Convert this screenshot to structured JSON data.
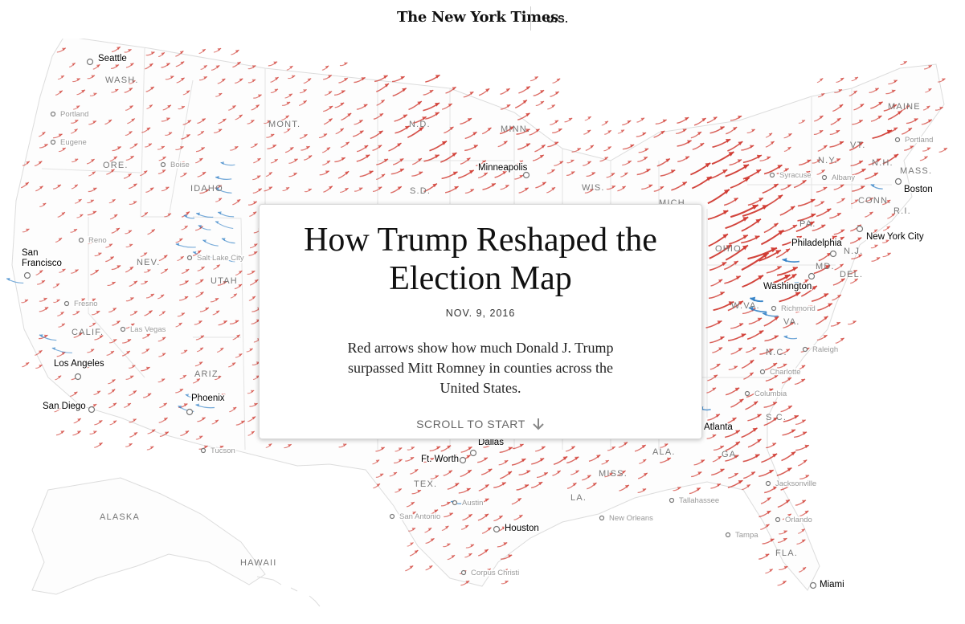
{
  "masthead": {
    "brand": "The New York Times",
    "section": "U.S."
  },
  "card": {
    "headline": "How Trump Reshaped the Election Map",
    "date": "NOV. 9, 2016",
    "dek": "Red arrows show how much Donald J. Trump surpassed Mitt Romney in counties across the United States.",
    "scroll_label": "SCROLL TO START",
    "scroll_icon": "arrow-down-icon"
  },
  "map": {
    "colors": {
      "trump_gain": "#d03a31",
      "dem_shift": "#2f7fc6",
      "state_border": "#d4d4d4",
      "label_gray": "#777777"
    },
    "state_labels": [
      "WASH.",
      "ORE.",
      "IDAHO",
      "MONT.",
      "N.D.",
      "MINN.",
      "S.D.",
      "WIS.",
      "MICH.",
      "NEV.",
      "UTAH",
      "CALIF.",
      "ARIZ.",
      "TEX.",
      "MISS.",
      "LA.",
      "ALA.",
      "GA.",
      "FLA.",
      "S.C.",
      "N.C.",
      "VA.",
      "W.VA.",
      "OHIO",
      "PA.",
      "N.Y.",
      "VT.",
      "N.H.",
      "MAINE",
      "MASS.",
      "CONN.",
      "R.I.",
      "N.J.",
      "DEL.",
      "MD.",
      "ALASKA",
      "HAWAII"
    ],
    "major_cities": [
      "Seattle",
      "San Francisco",
      "Los Angeles",
      "San Diego",
      "Phoenix",
      "Minneapolis",
      "Dallas",
      "Ft. Worth",
      "Houston",
      "Atlanta",
      "Washington",
      "Philadelphia",
      "New York City",
      "Boston",
      "Miami"
    ],
    "minor_cities": [
      "Portland",
      "Eugene",
      "Boise",
      "Reno",
      "Salt Lake City",
      "Fresno",
      "Las Vegas",
      "Tucson",
      "Austin",
      "San Antonio",
      "Corpus Christi",
      "New Orleans",
      "Tallahassee",
      "Jacksonville",
      "Orlando",
      "Tampa",
      "Columbia",
      "Charlotte",
      "Raleigh",
      "Richmond",
      "Syracuse",
      "Albany",
      "Portland"
    ]
  }
}
